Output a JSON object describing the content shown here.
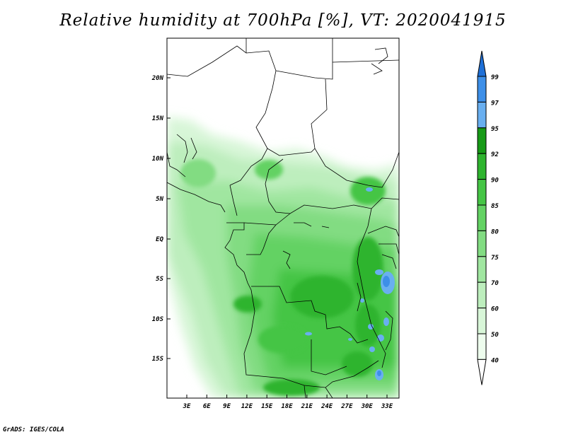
{
  "title": "Relative humidity at 700hPa [%], VT: 2020041915",
  "credit": "GrADS: IGES/COLA",
  "map": {
    "lat_labels": [
      "20N",
      "15N",
      "10N",
      "5N",
      "EQ",
      "5S",
      "10S",
      "15S"
    ],
    "lon_labels": [
      "3E",
      "6E",
      "9E",
      "12E",
      "15E",
      "18E",
      "21E",
      "24E",
      "27E",
      "30E",
      "33E"
    ]
  },
  "colorbar": {
    "levels": [
      "99",
      "97",
      "95",
      "92",
      "90",
      "85",
      "80",
      "75",
      "70",
      "60",
      "50",
      "40"
    ],
    "colors": [
      "#1e6fd6",
      "#3d8fe8",
      "#69aff0",
      "#179a17",
      "#2eb42e",
      "#45c545",
      "#63d263",
      "#82dc82",
      "#a0e6a0",
      "#bdeebd",
      "#d8f6d8",
      "#edfced",
      "#ffffff"
    ]
  }
}
